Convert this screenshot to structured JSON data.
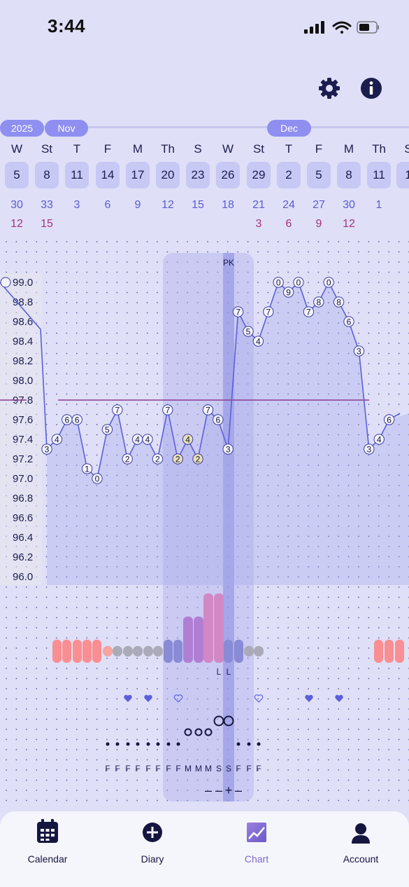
{
  "status_bar": {
    "time": "3:44"
  },
  "header": {
    "settings_icon": "gear-icon",
    "info_icon": "info-icon"
  },
  "months": [
    "2025",
    "Nov",
    "Dec"
  ],
  "days": [
    {
      "weekday": "W",
      "date": "5",
      "cd": "30",
      "cd2": "12"
    },
    {
      "weekday": "St",
      "date": "8",
      "cd": "33",
      "cd2": "15"
    },
    {
      "weekday": "T",
      "date": "11",
      "cd": "3",
      "cd2": ""
    },
    {
      "weekday": "F",
      "date": "14",
      "cd": "6",
      "cd2": ""
    },
    {
      "weekday": "M",
      "date": "17",
      "cd": "9",
      "cd2": ""
    },
    {
      "weekday": "Th",
      "date": "20",
      "cd": "12",
      "cd2": ""
    },
    {
      "weekday": "S",
      "date": "23",
      "cd": "15",
      "cd2": ""
    },
    {
      "weekday": "W",
      "date": "26",
      "cd": "18",
      "cd2": ""
    },
    {
      "weekday": "St",
      "date": "29",
      "cd": "21",
      "cd2": "3"
    },
    {
      "weekday": "T",
      "date": "2",
      "cd": "24",
      "cd2": "6"
    },
    {
      "weekday": "F",
      "date": "5",
      "cd": "27",
      "cd2": "9"
    },
    {
      "weekday": "M",
      "date": "8",
      "cd": "30",
      "cd2": "12"
    },
    {
      "weekday": "Th",
      "date": "11",
      "cd": "1",
      "cd2": ""
    },
    {
      "weekday": "S",
      "date": "1",
      "cd": "",
      "cd2": ""
    }
  ],
  "chart_data": {
    "type": "line",
    "y_ticks": [
      "99.0",
      "98.8",
      "98.6",
      "98.4",
      "98.2",
      "98.0",
      "97.8",
      "97.6",
      "97.4",
      "97.2",
      "97.0",
      "96.8",
      "96.6",
      "96.4",
      "96.2",
      "96.0"
    ],
    "ylim": [
      96.0,
      99.0
    ],
    "coverline": 97.8,
    "peak_label": "PK",
    "points": [
      {
        "label": "3",
        "value": 97.3
      },
      {
        "label": "4",
        "value": 97.4
      },
      {
        "label": "6",
        "value": 97.6
      },
      {
        "label": "6",
        "value": 97.6
      },
      {
        "label": "1",
        "value": 97.1
      },
      {
        "label": "0",
        "value": 97.0
      },
      {
        "label": "5",
        "value": 97.5
      },
      {
        "label": "7",
        "value": 97.7
      },
      {
        "label": "2",
        "value": 97.2
      },
      {
        "label": "4",
        "value": 97.4
      },
      {
        "label": "4",
        "value": 97.4
      },
      {
        "label": "2",
        "value": 97.2
      },
      {
        "label": "7",
        "value": 97.7
      },
      {
        "label": "2",
        "value": 97.2
      },
      {
        "label": "4",
        "value": 97.4
      },
      {
        "label": "2",
        "value": 97.2
      },
      {
        "label": "7",
        "value": 97.7
      },
      {
        "label": "6",
        "value": 97.6
      },
      {
        "label": "3",
        "value": 97.3
      },
      {
        "label": "7",
        "value": 98.7
      },
      {
        "label": "5",
        "value": 98.5
      },
      {
        "label": "4",
        "value": 98.4
      },
      {
        "label": "7",
        "value": 98.7
      },
      {
        "label": "0",
        "value": 99.0
      },
      {
        "label": "9",
        "value": 98.9
      },
      {
        "label": "0",
        "value": 99.0
      },
      {
        "label": "7",
        "value": 98.7
      },
      {
        "label": "8",
        "value": 98.8
      },
      {
        "label": "0",
        "value": 99.0
      },
      {
        "label": "8",
        "value": 98.8
      },
      {
        "label": "6",
        "value": 98.6
      },
      {
        "label": "3",
        "value": 98.3
      },
      {
        "label": "3",
        "value": 97.3
      },
      {
        "label": "4",
        "value": 97.4
      },
      {
        "label": "6",
        "value": 97.6
      }
    ],
    "lh_marks": [
      "L",
      "L"
    ],
    "fluid_marks": [
      "F",
      "F",
      "F",
      "F",
      "F",
      "F",
      "F",
      "F",
      "M",
      "M",
      "M",
      "S",
      "S",
      "F",
      "F",
      "F"
    ],
    "test_marks": [
      "–",
      "–",
      "+",
      "–"
    ]
  },
  "nav": {
    "items": [
      {
        "label": "Calendar",
        "icon": "calendar-icon"
      },
      {
        "label": "Diary",
        "icon": "plus-circle-icon"
      },
      {
        "label": "Chart",
        "icon": "chart-icon"
      },
      {
        "label": "Account",
        "icon": "person-icon"
      }
    ],
    "active_color": "#7e6ac9"
  }
}
